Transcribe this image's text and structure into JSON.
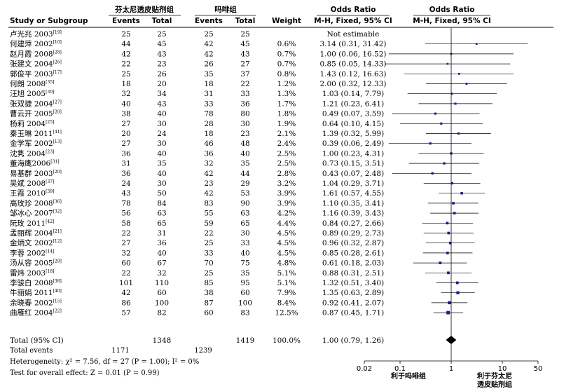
{
  "header": {
    "group1": "芬太尼透皮贴剂组",
    "group2": "吗啡组",
    "or_top_1": "Odds Ratio",
    "or_top_2": "Odds Ratio",
    "col_study": "Study or Subgroup",
    "col_events1": "Events",
    "col_total1": "Total",
    "col_events2": "Events",
    "col_total2": "Total",
    "col_weight": "Weight",
    "col_method1": "M-H, Fixed, 95% CI",
    "col_method2": "M-H, Fixed, 95% CI"
  },
  "chart_data": {
    "type": "forest",
    "x_scale": "log",
    "xlim": [
      0.02,
      50
    ],
    "ticks": [
      "0.02",
      "0.1",
      "1",
      "10",
      "50"
    ],
    "axis_label_left": "利于吗啡组",
    "axis_label_right": [
      "利于芬太尼",
      "透皮贴剂组"
    ],
    "studies": [
      {
        "name": "卢光兆 2003",
        "ref": "[19]",
        "e1": "25",
        "t1": "25",
        "e2": "25",
        "t2": "25",
        "weight": "",
        "ci_text": "Not estimable",
        "or": null,
        "lo": null,
        "hi": null
      },
      {
        "name": "何建萍 2002",
        "ref": "[10]",
        "e1": "44",
        "t1": "45",
        "e2": "42",
        "t2": "45",
        "weight": "0.6%",
        "ci_text": "3.14 (0.31, 31.42)",
        "or": 3.14,
        "lo": 0.31,
        "hi": 31.42
      },
      {
        "name": "赵月霞 2008",
        "ref": "[28]",
        "e1": "42",
        "t1": "43",
        "e2": "42",
        "t2": "43",
        "weight": "0.7%",
        "ci_text": "1.00 (0.06, 16.52)",
        "or": 1.0,
        "lo": 0.06,
        "hi": 16.52
      },
      {
        "name": "张建文 2004",
        "ref": "[26]",
        "e1": "22",
        "t1": "23",
        "e2": "26",
        "t2": "27",
        "weight": "0.7%",
        "ci_text": "0.85 (0.05, 14.33)",
        "or": 0.85,
        "lo": 0.05,
        "hi": 14.33
      },
      {
        "name": "郭俊平 2003",
        "ref": "[17]",
        "e1": "25",
        "t1": "26",
        "e2": "35",
        "t2": "37",
        "weight": "0.8%",
        "ci_text": "1.43 (0.12, 16.63)",
        "or": 1.43,
        "lo": 0.12,
        "hi": 16.63
      },
      {
        "name": "何朗 2008",
        "ref": "[35]",
        "e1": "18",
        "t1": "20",
        "e2": "18",
        "t2": "22",
        "weight": "1.2%",
        "ci_text": "2.00 (0.32, 12.33)",
        "or": 2.0,
        "lo": 0.32,
        "hi": 12.33
      },
      {
        "name": "汪旭 2005",
        "ref": "[30]",
        "e1": "32",
        "t1": "34",
        "e2": "31",
        "t2": "33",
        "weight": "1.3%",
        "ci_text": "1.03 (0.14, 7.79)",
        "or": 1.03,
        "lo": 0.14,
        "hi": 7.79
      },
      {
        "name": "张双捷 2004",
        "ref": "[27]",
        "e1": "40",
        "t1": "43",
        "e2": "33",
        "t2": "36",
        "weight": "1.7%",
        "ci_text": "1.21 (0.23, 6.41)",
        "or": 1.21,
        "lo": 0.23,
        "hi": 6.41
      },
      {
        "name": "曹云开 2005",
        "ref": "[20]",
        "e1": "38",
        "t1": "40",
        "e2": "78",
        "t2": "80",
        "weight": "1.8%",
        "ci_text": "0.49 (0.07, 3.59)",
        "or": 0.49,
        "lo": 0.07,
        "hi": 3.59
      },
      {
        "name": "杨莉 2004",
        "ref": "[25]",
        "e1": "27",
        "t1": "30",
        "e2": "28",
        "t2": "30",
        "weight": "1.9%",
        "ci_text": "0.64 (0.10, 4.15)",
        "or": 0.64,
        "lo": 0.1,
        "hi": 4.15
      },
      {
        "name": "秦玉琳 2011",
        "ref": "[41]",
        "e1": "20",
        "t1": "24",
        "e2": "18",
        "t2": "23",
        "weight": "2.1%",
        "ci_text": "1.39 (0.32, 5.99)",
        "or": 1.39,
        "lo": 0.32,
        "hi": 5.99
      },
      {
        "name": "金学军 2002",
        "ref": "[13]",
        "e1": "27",
        "t1": "30",
        "e2": "46",
        "t2": "48",
        "weight": "2.4%",
        "ci_text": "0.39 (0.06, 2.49)",
        "or": 0.39,
        "lo": 0.06,
        "hi": 2.49
      },
      {
        "name": "沈隽 2004",
        "ref": "[23]",
        "e1": "36",
        "t1": "40",
        "e2": "36",
        "t2": "40",
        "weight": "2.5%",
        "ci_text": "1.00 (0.23, 4.31)",
        "or": 1.0,
        "lo": 0.23,
        "hi": 4.31
      },
      {
        "name": "董海鹰2006",
        "ref": "[31]",
        "e1": "31",
        "t1": "35",
        "e2": "32",
        "t2": "35",
        "weight": "2.5%",
        "ci_text": "0.73 (0.15, 3.51)",
        "or": 0.73,
        "lo": 0.15,
        "hi": 3.51
      },
      {
        "name": "易基群 2003",
        "ref": "[20]",
        "e1": "36",
        "t1": "40",
        "e2": "42",
        "t2": "44",
        "weight": "2.8%",
        "ci_text": "0.43 (0.07, 2.48)",
        "or": 0.43,
        "lo": 0.07,
        "hi": 2.48
      },
      {
        "name": "吴斌 2008",
        "ref": "[37]",
        "e1": "24",
        "t1": "30",
        "e2": "23",
        "t2": "29",
        "weight": "3.2%",
        "ci_text": "1.04 (0.29, 3.71)",
        "or": 1.04,
        "lo": 0.29,
        "hi": 3.71
      },
      {
        "name": "王霞 2010",
        "ref": "[39]",
        "e1": "43",
        "t1": "50",
        "e2": "42",
        "t2": "53",
        "weight": "3.9%",
        "ci_text": "1.61 (0.57, 4.55)",
        "or": 1.61,
        "lo": 0.57,
        "hi": 4.55
      },
      {
        "name": "高玫珍 2008",
        "ref": "[36]",
        "e1": "78",
        "t1": "84",
        "e2": "83",
        "t2": "90",
        "weight": "3.9%",
        "ci_text": "1.10 (0.35, 3.41)",
        "or": 1.1,
        "lo": 0.35,
        "hi": 3.41
      },
      {
        "name": "邹冰心 2007",
        "ref": "[32]",
        "e1": "56",
        "t1": "63",
        "e2": "55",
        "t2": "63",
        "weight": "4.2%",
        "ci_text": "1.16 (0.39, 3.43)",
        "or": 1.16,
        "lo": 0.39,
        "hi": 3.43
      },
      {
        "name": "阮玫 2011",
        "ref": "[42]",
        "e1": "58",
        "t1": "65",
        "e2": "59",
        "t2": "65",
        "weight": "4.4%",
        "ci_text": "0.84 (0.27, 2.66)",
        "or": 0.84,
        "lo": 0.27,
        "hi": 2.66
      },
      {
        "name": "孟丽辉 2004",
        "ref": "[21]",
        "e1": "22",
        "t1": "31",
        "e2": "22",
        "t2": "30",
        "weight": "4.5%",
        "ci_text": "0.89 (0.29, 2.73)",
        "or": 0.89,
        "lo": 0.29,
        "hi": 2.73
      },
      {
        "name": "金炳文 2002",
        "ref": "[12]",
        "e1": "27",
        "t1": "36",
        "e2": "25",
        "t2": "33",
        "weight": "4.5%",
        "ci_text": "0.96 (0.32, 2.87)",
        "or": 0.96,
        "lo": 0.32,
        "hi": 2.87
      },
      {
        "name": "李蓉 2002",
        "ref": "[14]",
        "e1": "32",
        "t1": "40",
        "e2": "33",
        "t2": "40",
        "weight": "4.5%",
        "ci_text": "0.85 (0.28, 2.61)",
        "or": 0.85,
        "lo": 0.28,
        "hi": 2.61
      },
      {
        "name": "汤从容 2005",
        "ref": "[29]",
        "e1": "60",
        "t1": "67",
        "e2": "70",
        "t2": "75",
        "weight": "4.8%",
        "ci_text": "0.61 (0.18, 2.03)",
        "or": 0.61,
        "lo": 0.18,
        "hi": 2.03
      },
      {
        "name": "雷炜 2003",
        "ref": "[18]",
        "e1": "22",
        "t1": "32",
        "e2": "25",
        "t2": "35",
        "weight": "5.1%",
        "ci_text": "0.88 (0.31, 2.51)",
        "or": 0.88,
        "lo": 0.31,
        "hi": 2.51
      },
      {
        "name": "李骏白 2008",
        "ref": "[38]",
        "e1": "101",
        "t1": "110",
        "e2": "85",
        "t2": "95",
        "weight": "5.1%",
        "ci_text": "1.32 (0.51, 3.40)",
        "or": 1.32,
        "lo": 0.51,
        "hi": 3.4
      },
      {
        "name": "牛丽娟 2011",
        "ref": "[40]",
        "e1": "42",
        "t1": "60",
        "e2": "38",
        "t2": "60",
        "weight": "7.9%",
        "ci_text": "1.35 (0.63, 2.89)",
        "or": 1.35,
        "lo": 0.63,
        "hi": 2.89
      },
      {
        "name": "余晓春 2002",
        "ref": "[15]",
        "e1": "86",
        "t1": "100",
        "e2": "87",
        "t2": "100",
        "weight": "8.4%",
        "ci_text": "0.92 (0.41, 2.07)",
        "or": 0.92,
        "lo": 0.41,
        "hi": 2.07
      },
      {
        "name": "曲雁红 2004",
        "ref": "[22]",
        "e1": "57",
        "t1": "82",
        "e2": "60",
        "t2": "83",
        "weight": "12.5%",
        "ci_text": "0.87 (0.45, 1.71)",
        "or": 0.87,
        "lo": 0.45,
        "hi": 1.71
      }
    ],
    "total": {
      "label": "Total (95% CI)",
      "t1": "1348",
      "t2": "1419",
      "weight": "100.0%",
      "ci_text": "1.00 (0.79, 1.26)",
      "or": 1.0,
      "lo": 0.79,
      "hi": 1.26
    },
    "total_events": {
      "label": "Total events",
      "e1": "1171",
      "e2": "1239"
    },
    "heterogeneity": "Heterogeneity: χ² = 7.56, df = 27 (P = 1.00); I² = 0%",
    "overall_effect": "Test for overall effect: Z = 0.01 (P = 0.99)"
  },
  "colors": {
    "marker": "#1a1f8c",
    "diamond": "#000000",
    "lines": "#000000"
  }
}
